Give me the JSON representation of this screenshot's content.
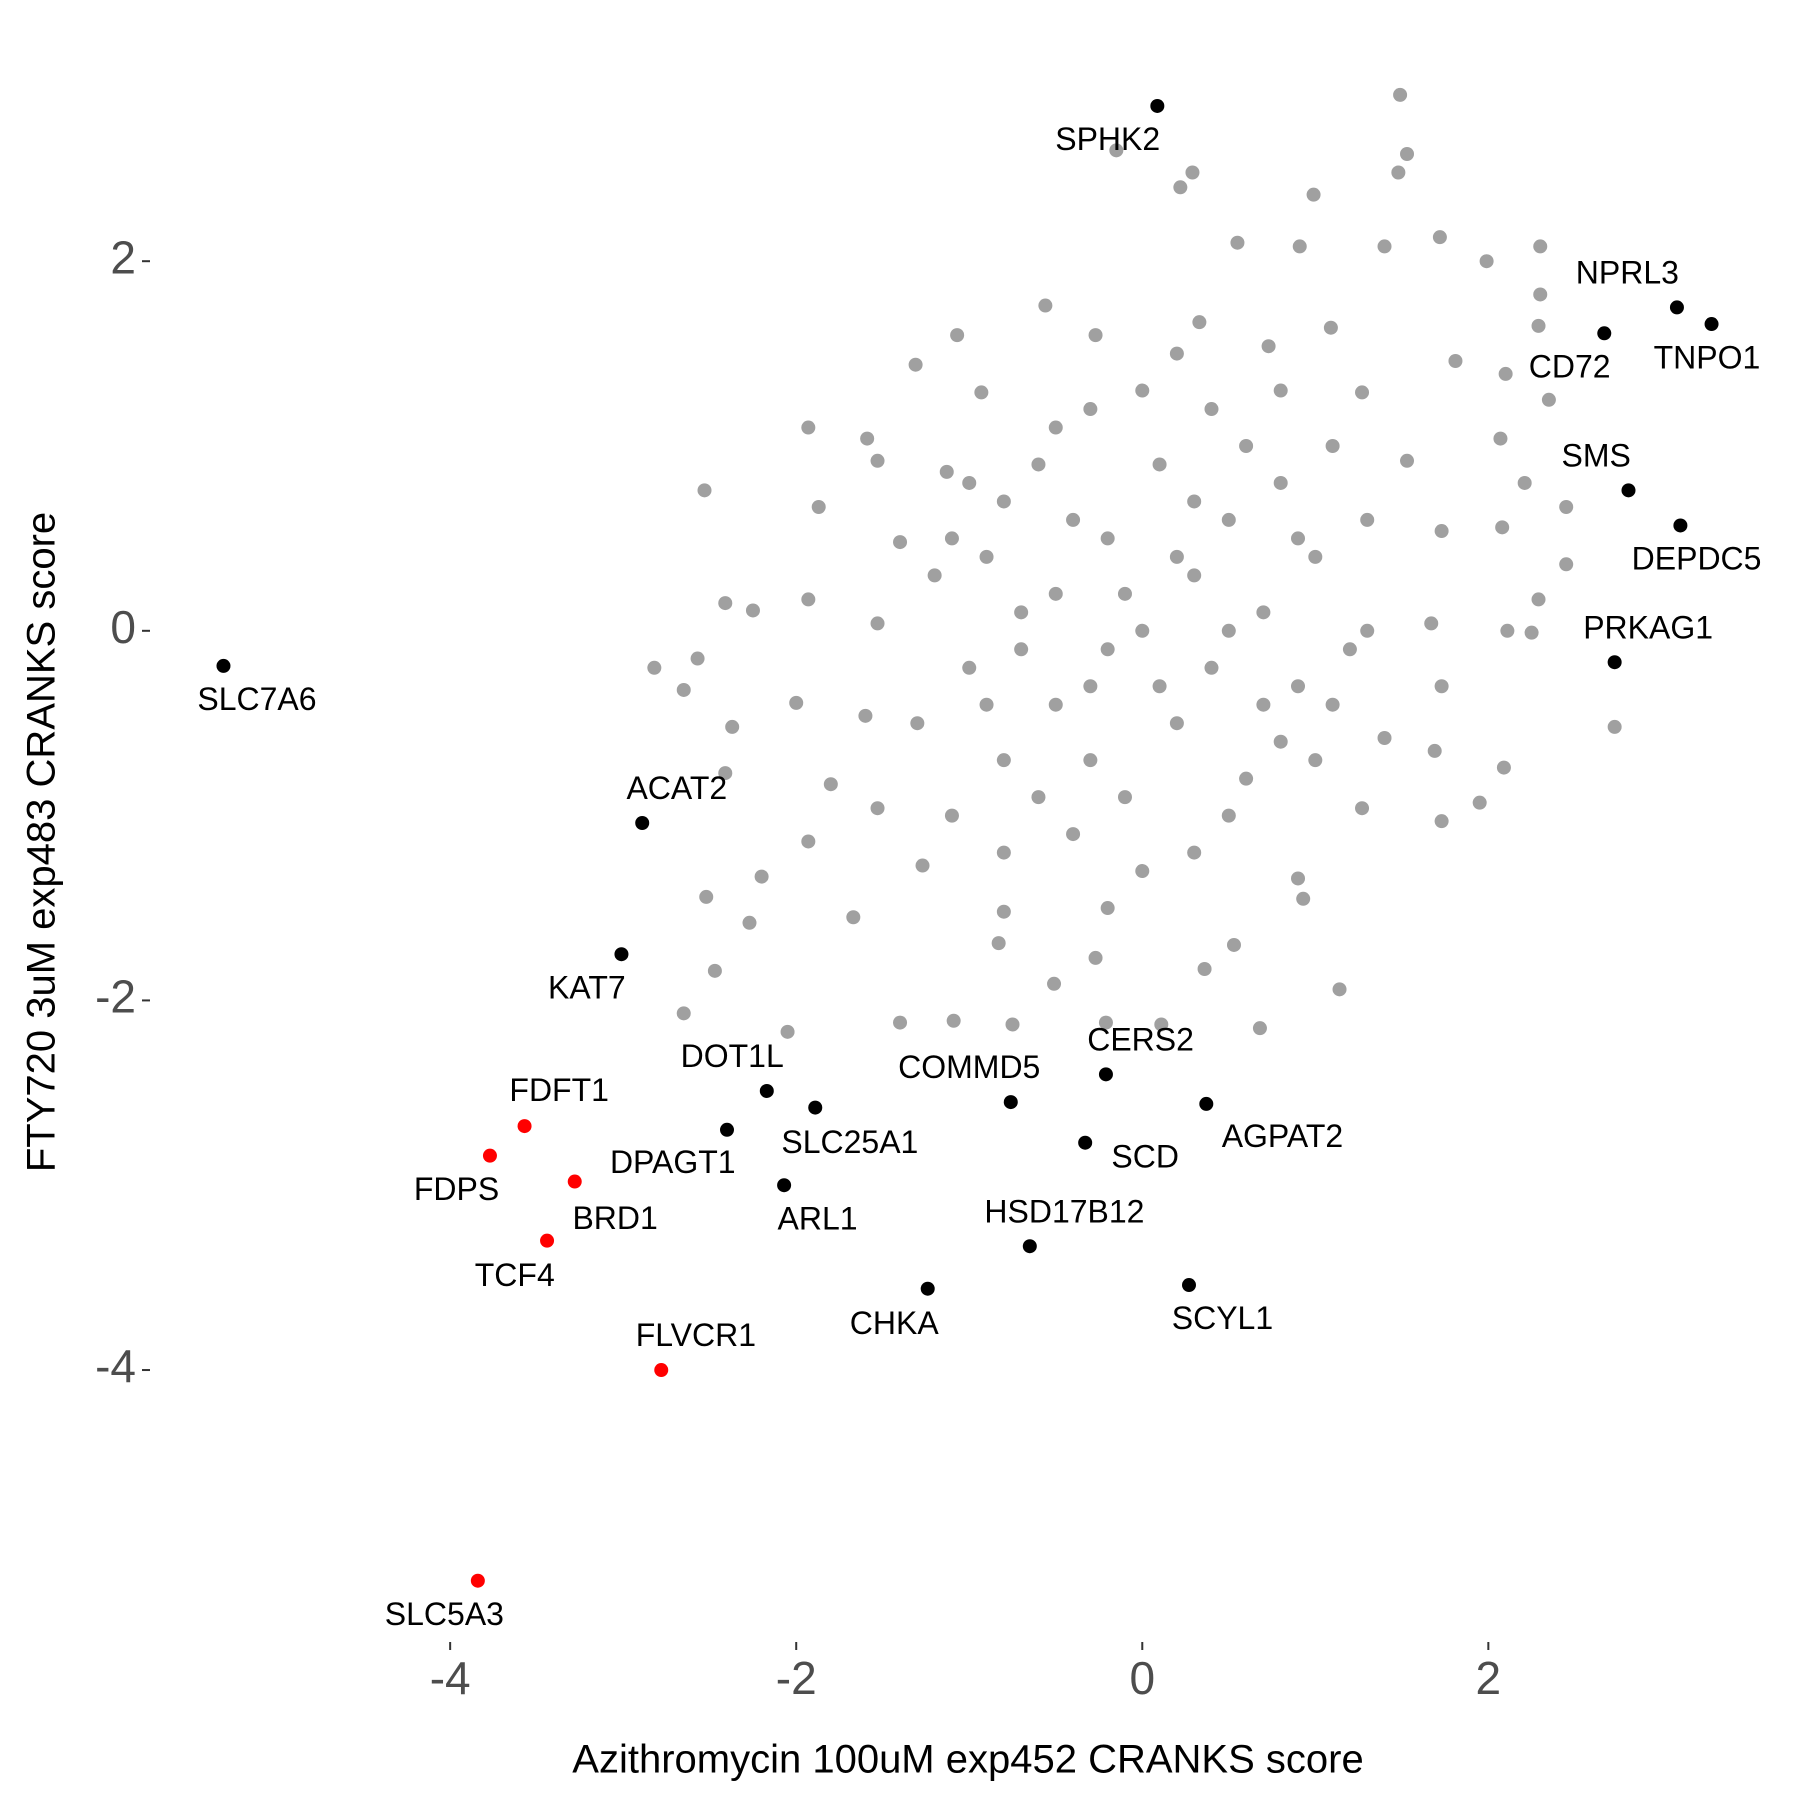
{
  "chart_data": {
    "type": "scatter",
    "x_label": "Azithromycin 100uM exp452 CRANKS score",
    "y_label": "FTY720 3uM exp483 CRANKS score",
    "xlim": [
      -5.7,
      3.57
    ],
    "ylim": [
      -5.45,
      3.04
    ],
    "xticks": [
      -4,
      -2,
      0,
      2
    ],
    "yticks": [
      -4,
      -2,
      0,
      2
    ],
    "grid": false,
    "series": [
      {
        "color": "#a0a0a0",
        "x": [
          1.49,
          1.53,
          1.48,
          -0.15,
          0.29,
          0.22,
          0.99,
          1.72,
          1.99,
          2.3,
          2.3,
          2.29,
          2.35,
          2.45,
          2.45,
          2.29,
          2.73,
          2.09,
          1.95,
          1.73,
          1.14,
          0.68,
          0.11,
          -0.21,
          -0.75,
          -1.09,
          -1.4,
          -2.05,
          -2.65,
          -2.47,
          -2.27,
          -2.52,
          -2.41,
          -2.37,
          -2.65,
          -2.82,
          -2.57,
          -2.41,
          -2.25,
          -2.53,
          -1.93,
          -1.31,
          -1.07,
          -1.59,
          -0.56,
          0.55,
          1.09,
          1.4,
          0.91,
          1.81,
          2.1,
          2.07,
          2.21,
          2.08,
          2.11,
          2.25,
          1.73,
          1.69,
          0.9,
          0.36,
          -0.51,
          -0.83,
          -1.67,
          -2.2,
          -1.93,
          -1.8,
          -2.0,
          -1.93,
          -1.87,
          -1.53,
          -0.93,
          -0.27,
          0.33,
          0.73,
          1.27,
          1.53,
          1.73,
          1.67,
          1.4,
          1.27,
          0.93,
          0.53,
          -0.27,
          -0.8,
          -1.27,
          -1.53,
          -1.6,
          -1.53,
          -1.4,
          -1.13,
          0,
          0.3,
          -0.3,
          0.5,
          -0.5,
          0.2,
          -0.2,
          0.7,
          -0.7,
          0.1,
          -0.1,
          0.8,
          -0.8,
          0.9,
          -0.9,
          0.4,
          -0.4,
          0.6,
          -0.6,
          1.0,
          -1.0,
          0.3,
          -0.3,
          1.1,
          -1.1,
          0.0,
          0.0,
          1.2,
          -1.2,
          0.5,
          -0.5,
          0.2,
          -0.2,
          0.8,
          -0.8,
          0.6,
          -0.6,
          1.0,
          -1.0,
          0.3,
          -0.3,
          0.9,
          -0.9,
          0.1,
          -0.1,
          0.4,
          -0.4,
          0.7,
          -0.7,
          1.3,
          -1.3,
          0.2,
          -0.2,
          0.5,
          -0.5,
          1.1,
          -1.1,
          0.8,
          -0.8,
          1.3
        ],
        "y": [
          2.9,
          2.58,
          2.48,
          2.6,
          2.48,
          2.4,
          2.36,
          2.13,
          2.0,
          2.08,
          1.82,
          1.65,
          1.25,
          0.67,
          0.36,
          0.17,
          -0.52,
          -0.74,
          -0.93,
          -1.03,
          -1.94,
          -2.15,
          -2.13,
          -2.12,
          -2.13,
          -2.11,
          -2.12,
          -2.17,
          -2.07,
          -1.84,
          -1.58,
          -1.44,
          -0.77,
          -0.52,
          -0.32,
          -0.2,
          -0.15,
          0.15,
          0.11,
          0.76,
          1.1,
          1.44,
          1.6,
          1.04,
          1.76,
          2.1,
          1.64,
          2.08,
          2.08,
          1.46,
          1.39,
          1.04,
          0.8,
          0.56,
          0.0,
          -0.01,
          -0.3,
          -0.65,
          -1.34,
          -1.83,
          -1.91,
          -1.69,
          -1.55,
          -1.33,
          -1.14,
          -0.83,
          -0.39,
          0.17,
          0.67,
          0.92,
          1.29,
          1.6,
          1.67,
          1.54,
          1.29,
          0.92,
          0.54,
          0.04,
          -0.58,
          -0.96,
          -1.45,
          -1.7,
          -1.77,
          -1.52,
          -1.27,
          -0.96,
          -0.46,
          0.04,
          0.48,
          0.86,
          0,
          0.3,
          -0.3,
          0.6,
          -0.4,
          -0.5,
          0.5,
          0.1,
          0.1,
          0.9,
          -0.9,
          0.8,
          -0.7,
          -0.3,
          0.4,
          1.2,
          -1.1,
          -0.8,
          0.9,
          0.4,
          -0.2,
          -1.2,
          1.2,
          1.0,
          -1.0,
          1.3,
          -1.3,
          -0.1,
          0.3,
          0.0,
          0.2,
          0.4,
          -0.1,
          -0.6,
          0.7,
          1.0,
          -0.9,
          -0.7,
          0.8,
          0.7,
          -0.7,
          0.5,
          -0.4,
          -0.3,
          0.2,
          -0.2,
          0.6,
          -0.4,
          -0.1,
          0.6,
          -0.5,
          1.5,
          -1.5,
          -1.0,
          1.1,
          -0.4,
          0.5,
          1.3,
          -1.2,
          0.0
        ]
      },
      {
        "color": "#000000",
        "x": [
          0.087,
          3.09,
          3.29,
          2.67,
          2.81,
          3.11,
          2.73,
          -5.31,
          -2.89,
          -3.01,
          -2.17,
          -1.89,
          -2.4,
          -2.07,
          -0.76,
          -0.21,
          -0.33,
          0.37,
          -0.65,
          0.27,
          -1.24
        ],
        "y": [
          2.84,
          1.75,
          1.66,
          1.61,
          0.76,
          0.57,
          -0.17,
          -0.19,
          -1.04,
          -1.75,
          -2.49,
          -2.58,
          -2.7,
          -3.0,
          -2.55,
          -2.4,
          -2.77,
          -2.56,
          -3.33,
          -3.54,
          -3.56
        ],
        "labels": [
          "SPHK2",
          "NPRL3",
          "TNPO1",
          "CD72",
          "SMS",
          "DEPDC5",
          "PRKAG1",
          "SLC7A6",
          "ACAT2",
          "KAT7",
          "DOT1L",
          "SLC25A1",
          "DPAGT1",
          "ARL1",
          "COMMD5",
          "CERS2",
          "SCD",
          "AGPAT2",
          "HSD17B12",
          "SCYL1",
          "CHKA"
        ]
      },
      {
        "color": "#ff0000",
        "x": [
          -3.57,
          -3.77,
          -3.28,
          -3.44,
          -2.78,
          -3.84
        ],
        "y": [
          -2.68,
          -2.84,
          -2.98,
          -3.3,
          -4.0,
          -5.14
        ],
        "labels": [
          "FDFT1",
          "FDPS",
          "BRD1",
          "TCF4",
          "FLVCR1",
          "SLC5A3"
        ]
      }
    ]
  }
}
